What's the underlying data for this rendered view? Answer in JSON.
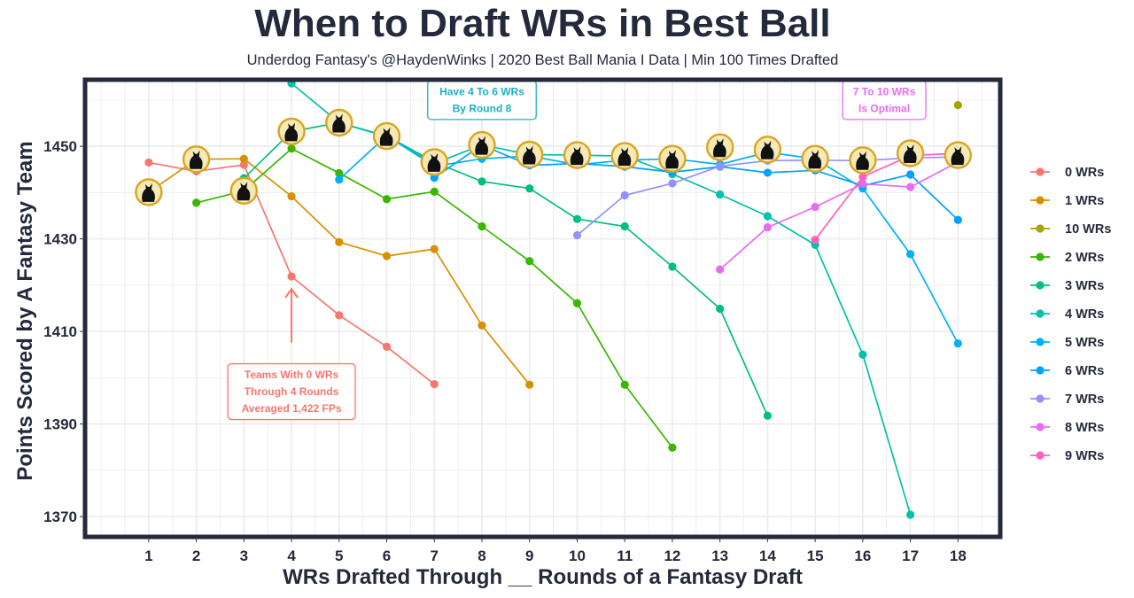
{
  "colors": {
    "frame": "#232a3b",
    "grid": "#ebebeb",
    "marker_ring": "#d9a521",
    "marker_fill": "#f6e9b5",
    "marker_silhouette": "#111111"
  },
  "chart_data": {
    "type": "line",
    "title": "When to Draft WRs in Best Ball",
    "subtitle": "Underdog Fantasy's @HaydenWinks | 2020 Best Ball Mania I Data | Min 100 Times Drafted",
    "xlabel": "WRs Drafted Through __ Rounds of a Fantasy Draft",
    "ylabel": "Points Scored by A Fantasy Team",
    "xlim": [
      -0.3,
      18.85
    ],
    "ylim": [
      1366,
      1464
    ],
    "x_ticks": [
      1,
      2,
      3,
      4,
      5,
      6,
      7,
      8,
      9,
      10,
      11,
      12,
      13,
      14,
      15,
      16,
      17,
      18
    ],
    "y_ticks": [
      1370,
      1390,
      1410,
      1430,
      1450
    ],
    "grid": true,
    "legend_position": "right",
    "series": [
      {
        "name": "0 WRs",
        "color": "#f8766d",
        "x": [
          1,
          2,
          3,
          4,
          5,
          6,
          7
        ],
        "y": [
          1446.5,
          1444.6,
          1446,
          1421.9,
          1413.5,
          1406.7,
          1398.6
        ]
      },
      {
        "name": "1 WRs",
        "color": "#d89000",
        "x": [
          1,
          2,
          3,
          4,
          5,
          6,
          7,
          8,
          9
        ],
        "y": [
          1440.1,
          1447.2,
          1447.3,
          1439.2,
          1429.3,
          1426.3,
          1427.8,
          1411.3,
          1398.5
        ]
      },
      {
        "name": "10 WRs",
        "color": "#a3a500",
        "x": [
          18
        ],
        "y": [
          1458.9
        ]
      },
      {
        "name": "2 WRs",
        "color": "#39b600",
        "x": [
          2,
          3,
          4,
          5,
          6,
          7,
          8,
          9,
          10,
          11,
          12
        ],
        "y": [
          1437.8,
          1440.4,
          1449.5,
          1444.2,
          1438.6,
          1440.2,
          1432.7,
          1425.2,
          1416.1,
          1398.5,
          1384.9
        ]
      },
      {
        "name": "3 WRs",
        "color": "#00bf7d",
        "x": [
          3,
          4,
          5,
          6,
          7,
          8,
          9,
          10,
          11,
          12,
          13,
          14
        ],
        "y": [
          1443.1,
          1453.2,
          1455.1,
          1452.2,
          1446.6,
          1442.4,
          1440.9,
          1434.3,
          1432.7,
          1424.0,
          1414.9,
          1391.8
        ]
      },
      {
        "name": "4 WRs",
        "color": "#00c1a9",
        "x": [
          4,
          5,
          6,
          7,
          8,
          9,
          10,
          11,
          12,
          13,
          14,
          15,
          16,
          17
        ],
        "y": [
          1463.6,
          1455.1,
          1452.1,
          1446.3,
          1450.3,
          1448.2,
          1448.1,
          1447.9,
          1444.0,
          1439.6,
          1434.9,
          1428.7,
          1405.0,
          1370.4
        ]
      },
      {
        "name": "5 WRs",
        "color": "#00b0f6",
        "x": [
          5,
          6,
          7,
          8,
          9,
          10,
          11,
          12,
          13,
          14,
          15,
          16,
          17,
          18
        ],
        "y": [
          1442.8,
          1452.3,
          1445.7,
          1447.3,
          1447.9,
          1446.0,
          1447.0,
          1447.3,
          1446.1,
          1448.7,
          1447.3,
          1440.9,
          1426.7,
          1407.4
        ]
      },
      {
        "name": "6 WRs",
        "color": "#00a2ff",
        "x": [
          7,
          8,
          9,
          10,
          11,
          12,
          13,
          14,
          15,
          16,
          17,
          18
        ],
        "y": [
          1443.2,
          1450.3,
          1445.9,
          1446.3,
          1445.6,
          1444.4,
          1445.6,
          1444.3,
          1444.8,
          1441.5,
          1443.9,
          1434.1
        ]
      },
      {
        "name": "7 WRs",
        "color": "#9590ff",
        "x": [
          10,
          11,
          12,
          13,
          14,
          15,
          16,
          17,
          18
        ],
        "y": [
          1430.8,
          1439.4,
          1442.0,
          1445.7,
          1446.9,
          1447.0,
          1446.9,
          1447.5,
          1447.7
        ]
      },
      {
        "name": "8 WRs",
        "color": "#e76bf3",
        "x": [
          13,
          14,
          15,
          16,
          17,
          18
        ],
        "y": [
          1423.4,
          1432.5,
          1436.9,
          1441.9,
          1441.2,
          1446.6
        ]
      },
      {
        "name": "9 WRs",
        "color": "#ff62bc",
        "x": [
          15,
          16,
          17,
          18
        ],
        "y": [
          1429.8,
          1443.4,
          1448.0,
          1448.5
        ]
      }
    ],
    "highlight_markers": [
      {
        "x": 1,
        "y": 1440.1
      },
      {
        "x": 2,
        "y": 1447.2
      },
      {
        "x": 3,
        "y": 1440.4
      },
      {
        "x": 4,
        "y": 1453.2
      },
      {
        "x": 5,
        "y": 1455.1
      },
      {
        "x": 6,
        "y": 1452.2
      },
      {
        "x": 7,
        "y": 1446.6
      },
      {
        "x": 8,
        "y": 1450.3
      },
      {
        "x": 9,
        "y": 1448.2
      },
      {
        "x": 10,
        "y": 1448.1
      },
      {
        "x": 11,
        "y": 1447.9
      },
      {
        "x": 12,
        "y": 1447.3
      },
      {
        "x": 13,
        "y": 1449.8
      },
      {
        "x": 14,
        "y": 1449.3
      },
      {
        "x": 15,
        "y": 1447.3
      },
      {
        "x": 16,
        "y": 1447.0
      },
      {
        "x": 17,
        "y": 1448.5
      },
      {
        "x": 18,
        "y": 1448.1
      }
    ],
    "annotations": [
      {
        "id": "zero-wr-note",
        "lines": [
          "Teams With 0 WRs",
          "Through 4 Rounds",
          "Averaged 1,422 FPs"
        ],
        "x": 4,
        "y": 1397,
        "color": "#f8766d",
        "arrow_from_y": 1407.6,
        "arrow_to_y": 1419.2
      },
      {
        "id": "four-to-six-note",
        "lines": [
          "Have 4 To 6 WRs",
          "By Round 8"
        ],
        "x": 8,
        "y": 1460,
        "color": "#1fb0c8"
      },
      {
        "id": "seven-to-ten-note",
        "lines": [
          "7 To 10 WRs",
          "Is Optimal"
        ],
        "x": 16.45,
        "y": 1460,
        "color": "#e76bf3"
      }
    ]
  }
}
